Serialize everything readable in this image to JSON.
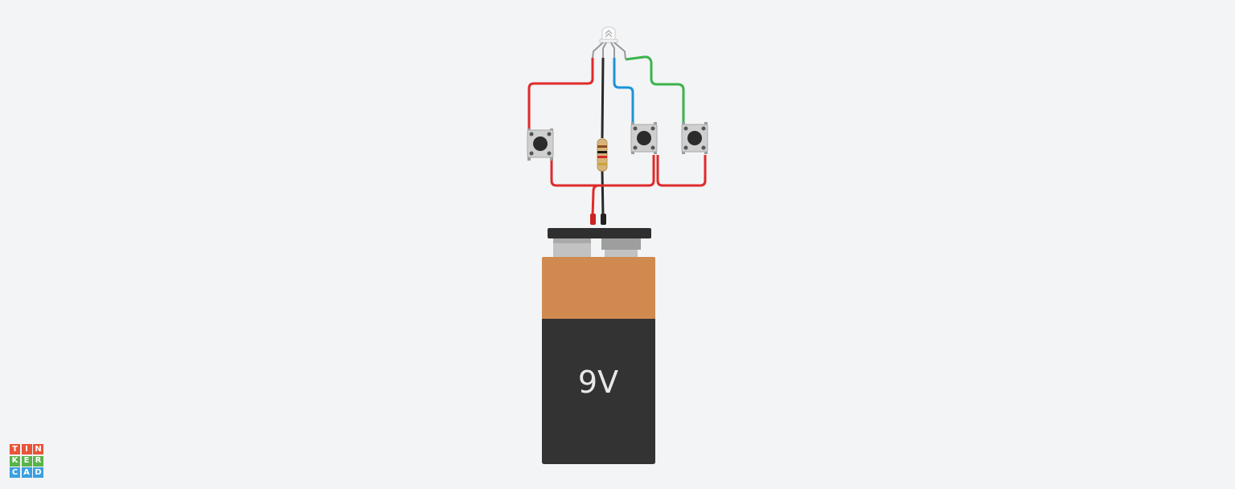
{
  "battery": {
    "label": "9V",
    "colors": {
      "top": "#d08a50",
      "body": "#333333",
      "cap": "#2f2f2f",
      "terminal": "#c2c2c2",
      "label": "#e8e8e8"
    }
  },
  "wires": {
    "red": "#e02a2a",
    "blue": "#1e93d8",
    "green": "#3bb34a",
    "black": "#2a2a2a"
  },
  "logo": {
    "letters": [
      "T",
      "I",
      "N",
      "K",
      "E",
      "R",
      "C",
      "A",
      "D"
    ],
    "colors": [
      "#e8553a",
      "#e8553a",
      "#e8553a",
      "#5ab44a",
      "#5ab44a",
      "#5ab44a",
      "#3a9fe0",
      "#3a9fe0",
      "#3a9fe0"
    ]
  }
}
